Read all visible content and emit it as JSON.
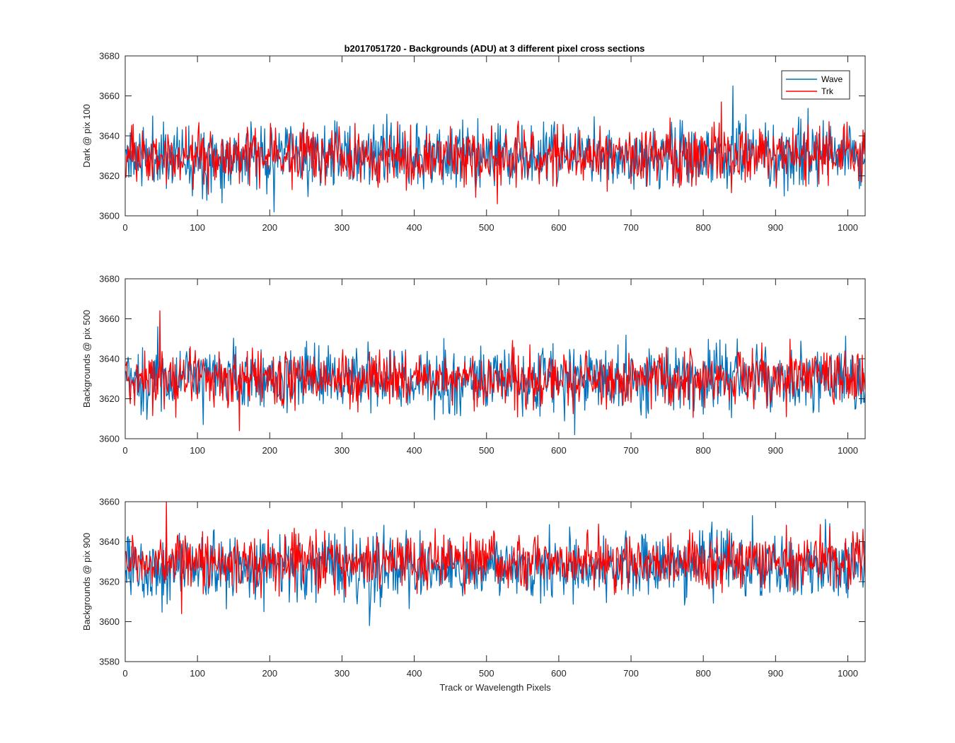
{
  "title": "b2017051720 - Backgrounds (ADU) at 3 different pixel cross sections",
  "colors": {
    "wave": "#0072BD",
    "trk": "#FF0000",
    "axis": "#262626",
    "background": "#FFFFFF"
  },
  "chart_data": [
    {
      "type": "line",
      "title": "b2017051720 - Backgrounds (ADU) at 3 different pixel cross sections",
      "xlabel": "",
      "ylabel": "Dark @ pix 100",
      "xlim": [
        0,
        1024
      ],
      "ylim": [
        3600,
        3680
      ],
      "xticks": [
        0,
        100,
        200,
        300,
        400,
        500,
        600,
        700,
        800,
        900,
        1000
      ],
      "yticks": [
        3600,
        3620,
        3640,
        3660,
        3680
      ],
      "legend": {
        "position": "top-right",
        "entries": [
          "Wave",
          "Trk"
        ]
      },
      "grid": false,
      "x": "pixel index 1..1024",
      "series": [
        {
          "name": "Wave",
          "color": "#0072BD",
          "noise": {
            "mean": 3630,
            "spread": 8,
            "min": 3602,
            "max": 3665,
            "seed": 11
          }
        },
        {
          "name": "Trk",
          "color": "#FF0000",
          "noise": {
            "mean": 3630,
            "spread": 7,
            "min": 3606,
            "max": 3657,
            "seed": 23
          }
        }
      ]
    },
    {
      "type": "line",
      "title": "",
      "xlabel": "",
      "ylabel": "Backgrounds @ pix 500",
      "xlim": [
        0,
        1024
      ],
      "ylim": [
        3600,
        3680
      ],
      "xticks": [
        0,
        100,
        200,
        300,
        400,
        500,
        600,
        700,
        800,
        900,
        1000
      ],
      "yticks": [
        3600,
        3620,
        3640,
        3660,
        3680
      ],
      "legend": null,
      "grid": false,
      "x": "pixel index 1..1024",
      "series": [
        {
          "name": "Wave",
          "color": "#0072BD",
          "noise": {
            "mean": 3630,
            "spread": 8,
            "min": 3602,
            "max": 3656,
            "seed": 37
          }
        },
        {
          "name": "Trk",
          "color": "#FF0000",
          "noise": {
            "mean": 3630,
            "spread": 7,
            "min": 3604,
            "max": 3664,
            "seed": 41
          }
        }
      ]
    },
    {
      "type": "line",
      "title": "",
      "xlabel": "Track or Wavelength Pixels",
      "ylabel": "Backgrounds @ pix 900",
      "xlim": [
        0,
        1024
      ],
      "ylim": [
        3580,
        3660
      ],
      "xticks": [
        0,
        100,
        200,
        300,
        400,
        500,
        600,
        700,
        800,
        900,
        1000
      ],
      "yticks": [
        3580,
        3600,
        3620,
        3640,
        3660
      ],
      "legend": null,
      "grid": false,
      "x": "pixel index 1..1024",
      "series": [
        {
          "name": "Wave",
          "color": "#0072BD",
          "noise": {
            "mean": 3627,
            "spread": 8,
            "min": 3598,
            "max": 3653,
            "seed": 53
          }
        },
        {
          "name": "Trk",
          "color": "#FF0000",
          "noise": {
            "mean": 3630,
            "spread": 7,
            "min": 3604,
            "max": 3660,
            "seed": 67
          }
        }
      ]
    }
  ]
}
